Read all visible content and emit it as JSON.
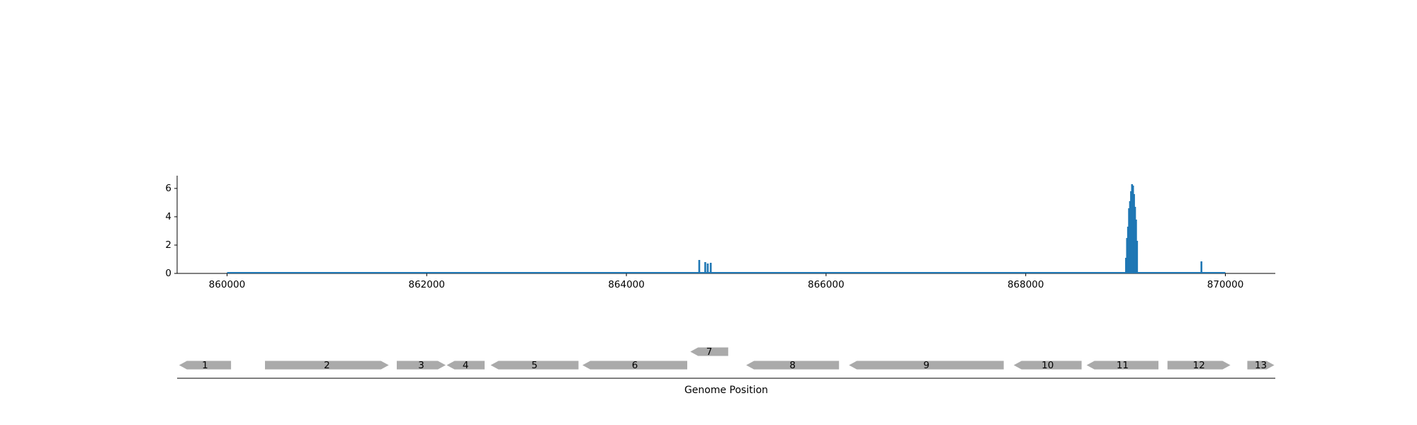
{
  "chart_data": [
    {
      "type": "bar",
      "title": "",
      "xlabel": "",
      "ylabel": "",
      "xlim": [
        859500,
        870500
      ],
      "ylim": [
        0,
        6.9
      ],
      "xticks": [
        860000,
        862000,
        864000,
        866000,
        868000,
        870000
      ],
      "yticks": [
        0,
        2,
        4,
        6
      ],
      "grid": false,
      "color": "#1f77b4",
      "baseline_range": [
        860000,
        870000
      ],
      "peaks": [
        {
          "x": 864730,
          "y": 0.95
        },
        {
          "x": 864790,
          "y": 0.8
        },
        {
          "x": 864815,
          "y": 0.7
        },
        {
          "x": 864845,
          "y": 0.75
        },
        {
          "x": 869005,
          "y": 1.1
        },
        {
          "x": 869015,
          "y": 2.5
        },
        {
          "x": 869025,
          "y": 3.3
        },
        {
          "x": 869035,
          "y": 4.6
        },
        {
          "x": 869045,
          "y": 5.1
        },
        {
          "x": 869055,
          "y": 5.8
        },
        {
          "x": 869065,
          "y": 6.3
        },
        {
          "x": 869075,
          "y": 6.2
        },
        {
          "x": 869085,
          "y": 5.6
        },
        {
          "x": 869095,
          "y": 4.7
        },
        {
          "x": 869105,
          "y": 3.8
        },
        {
          "x": 869115,
          "y": 2.3
        },
        {
          "x": 869760,
          "y": 0.85
        }
      ]
    },
    {
      "type": "gene-track",
      "xlabel": "Genome Position",
      "xlim": [
        859500,
        870500
      ],
      "color": "#aaaaaa",
      "genes": [
        {
          "label": "1",
          "start": 859520,
          "end": 860040,
          "strand": "-",
          "row": 0
        },
        {
          "label": "2",
          "start": 860380,
          "end": 861620,
          "strand": "+",
          "row": 0
        },
        {
          "label": "3",
          "start": 861700,
          "end": 862190,
          "strand": "+",
          "row": 0
        },
        {
          "label": "4",
          "start": 862200,
          "end": 862580,
          "strand": "-",
          "row": 0
        },
        {
          "label": "5",
          "start": 862640,
          "end": 863520,
          "strand": "-",
          "row": 0
        },
        {
          "label": "6",
          "start": 863560,
          "end": 864610,
          "strand": "-",
          "row": 0
        },
        {
          "label": "7",
          "start": 864640,
          "end": 865020,
          "strand": "-",
          "row": 1
        },
        {
          "label": "8",
          "start": 865200,
          "end": 866130,
          "strand": "-",
          "row": 0
        },
        {
          "label": "9",
          "start": 866230,
          "end": 867780,
          "strand": "-",
          "row": 0
        },
        {
          "label": "10",
          "start": 867880,
          "end": 868560,
          "strand": "-",
          "row": 0
        },
        {
          "label": "11",
          "start": 868610,
          "end": 869330,
          "strand": "-",
          "row": 0
        },
        {
          "label": "12",
          "start": 869420,
          "end": 870050,
          "strand": "+",
          "row": 0
        },
        {
          "label": "13",
          "start": 870220,
          "end": 870490,
          "strand": "+",
          "row": 0
        }
      ]
    }
  ]
}
